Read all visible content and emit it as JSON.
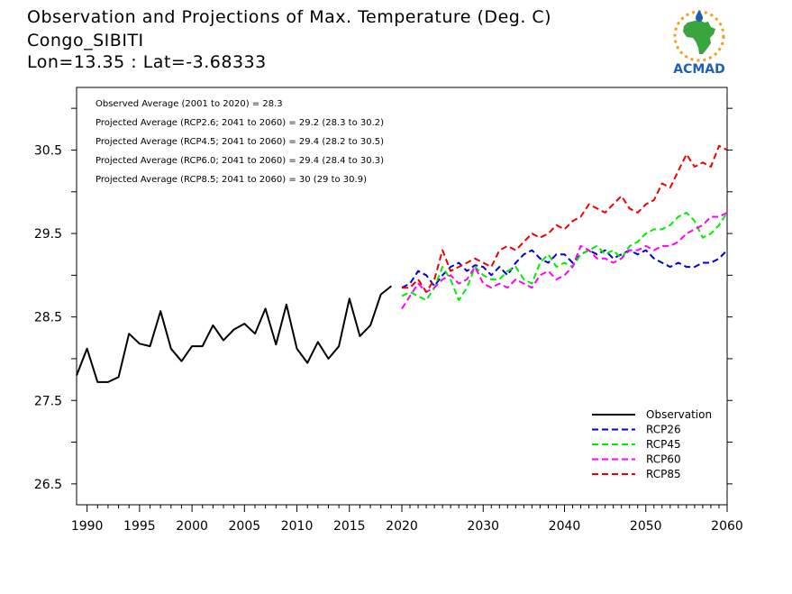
{
  "title": {
    "line1": "Observation and Projections of Max. Temperature (Deg. C)",
    "line2": "Congo_SIBITI",
    "line3": "Lon=13.35 : Lat=-3.68333"
  },
  "logo_text": "ACMAD",
  "colors": {
    "observation": "#000000",
    "rcp26": "#0000dd",
    "rcp45": "#00ee00",
    "rcp60": "#ff00ff",
    "rcp85": "#ee0000",
    "logo_blue": "#1f5fb4",
    "logo_green": "#3aa540",
    "logo_orange": "#f2a11f"
  },
  "chart_data": {
    "type": "line",
    "xlim": [
      1989,
      2060
    ],
    "ylim": [
      26.25,
      31.25
    ],
    "x_ticks": [
      1990,
      1995,
      2000,
      2005,
      2010,
      2015,
      2020,
      2030,
      2040,
      2050,
      2060
    ],
    "y_ticks": [
      26.5,
      27.5,
      28.5,
      29.5,
      30.5
    ],
    "annotations": [
      "Observed Average (2001 to 2020) = 28.3",
      "Projected Average (RCP2.6; 2041 to 2060) = 29.2 (28.3 to 30.2)",
      "Projected Average (RCP4.5; 2041 to 2060) = 29.4 (28.2 to 30.5)",
      "Projected Average (RCP6.0; 2041 to 2060) = 29.4 (28.4 to 30.3)",
      "Projected Average (RCP8.5; 2041 to 2060) = 30 (29 to 30.9)"
    ],
    "legend_position": "bottom-right",
    "series": [
      {
        "name": "Observation",
        "color_key": "observation",
        "dashed": false,
        "x": [
          1989,
          1990,
          1991,
          1992,
          1993,
          1994,
          1995,
          1996,
          1997,
          1998,
          1999,
          2000,
          2001,
          2002,
          2003,
          2004,
          2005,
          2006,
          2007,
          2008,
          2009,
          2010,
          2011,
          2012,
          2013,
          2014,
          2015,
          2016,
          2017,
          2018,
          2019
        ],
        "values": [
          27.8,
          28.12,
          27.72,
          27.72,
          27.78,
          28.3,
          28.18,
          28.15,
          28.57,
          28.12,
          27.97,
          28.15,
          28.15,
          28.4,
          28.22,
          28.35,
          28.42,
          28.3,
          28.6,
          28.17,
          28.65,
          28.12,
          27.95,
          28.2,
          28.0,
          28.15,
          28.72,
          28.27,
          28.4,
          28.77,
          28.87
        ]
      },
      {
        "name": "RCP26",
        "color_key": "rcp26",
        "dashed": true,
        "x": [
          2020,
          2021,
          2022,
          2023,
          2024,
          2025,
          2026,
          2027,
          2028,
          2029,
          2030,
          2031,
          2032,
          2033,
          2034,
          2035,
          2036,
          2037,
          2038,
          2039,
          2040,
          2041,
          2042,
          2043,
          2044,
          2045,
          2046,
          2047,
          2048,
          2049,
          2050,
          2051,
          2052,
          2053,
          2054,
          2055,
          2056,
          2057,
          2058,
          2059,
          2060
        ],
        "values": [
          28.85,
          28.9,
          29.05,
          29.0,
          28.87,
          29.0,
          29.1,
          29.15,
          29.05,
          29.12,
          29.1,
          29.0,
          29.1,
          29.0,
          29.15,
          29.25,
          29.3,
          29.2,
          29.15,
          29.25,
          29.25,
          29.15,
          29.25,
          29.3,
          29.25,
          29.3,
          29.2,
          29.25,
          29.3,
          29.25,
          29.3,
          29.2,
          29.15,
          29.1,
          29.15,
          29.1,
          29.1,
          29.15,
          29.15,
          29.2,
          29.3
        ]
      },
      {
        "name": "RCP45",
        "color_key": "rcp45",
        "dashed": true,
        "x": [
          2020,
          2021,
          2022,
          2023,
          2024,
          2025,
          2026,
          2027,
          2028,
          2029,
          2030,
          2031,
          2032,
          2033,
          2034,
          2035,
          2036,
          2037,
          2038,
          2039,
          2040,
          2041,
          2042,
          2043,
          2044,
          2045,
          2046,
          2047,
          2048,
          2049,
          2050,
          2051,
          2052,
          2053,
          2054,
          2055,
          2056,
          2057,
          2058,
          2059,
          2060
        ],
        "values": [
          28.75,
          28.8,
          28.75,
          28.7,
          28.85,
          29.1,
          28.95,
          28.7,
          28.85,
          29.1,
          29.0,
          28.95,
          28.95,
          29.05,
          29.1,
          28.95,
          28.9,
          29.15,
          29.25,
          29.1,
          29.15,
          29.1,
          29.25,
          29.3,
          29.35,
          29.25,
          29.3,
          29.2,
          29.35,
          29.4,
          29.5,
          29.55,
          29.55,
          29.6,
          29.7,
          29.75,
          29.65,
          29.45,
          29.5,
          29.6,
          29.75
        ]
      },
      {
        "name": "RCP60",
        "color_key": "rcp60",
        "dashed": true,
        "x": [
          2020,
          2021,
          2022,
          2023,
          2024,
          2025,
          2026,
          2027,
          2028,
          2029,
          2030,
          2031,
          2032,
          2033,
          2034,
          2035,
          2036,
          2037,
          2038,
          2039,
          2040,
          2041,
          2042,
          2043,
          2044,
          2045,
          2046,
          2047,
          2048,
          2049,
          2050,
          2051,
          2052,
          2053,
          2054,
          2055,
          2056,
          2057,
          2058,
          2059,
          2060
        ],
        "values": [
          28.6,
          28.75,
          28.9,
          28.8,
          28.85,
          28.95,
          29.0,
          28.9,
          28.95,
          29.1,
          28.9,
          28.85,
          28.9,
          28.85,
          28.95,
          28.9,
          28.85,
          29.0,
          29.05,
          28.95,
          29.0,
          29.1,
          29.35,
          29.3,
          29.2,
          29.2,
          29.15,
          29.2,
          29.3,
          29.3,
          29.35,
          29.3,
          29.35,
          29.35,
          29.4,
          29.5,
          29.55,
          29.6,
          29.7,
          29.7,
          29.75
        ]
      },
      {
        "name": "RCP85",
        "color_key": "rcp85",
        "dashed": true,
        "x": [
          2020,
          2021,
          2022,
          2023,
          2024,
          2025,
          2026,
          2027,
          2028,
          2029,
          2030,
          2031,
          2032,
          2033,
          2034,
          2035,
          2036,
          2037,
          2038,
          2039,
          2040,
          2041,
          2042,
          2043,
          2044,
          2045,
          2046,
          2047,
          2048,
          2049,
          2050,
          2051,
          2052,
          2053,
          2054,
          2055,
          2056,
          2057,
          2058,
          2059,
          2060
        ],
        "values": [
          28.85,
          28.85,
          28.95,
          28.8,
          28.95,
          29.3,
          29.05,
          29.1,
          29.15,
          29.2,
          29.15,
          29.1,
          29.3,
          29.35,
          29.3,
          29.4,
          29.5,
          29.45,
          29.5,
          29.6,
          29.55,
          29.65,
          29.7,
          29.85,
          29.8,
          29.75,
          29.85,
          29.95,
          29.8,
          29.75,
          29.85,
          29.9,
          30.1,
          30.05,
          30.25,
          30.45,
          30.3,
          30.35,
          30.3,
          30.55,
          30.5
        ]
      }
    ]
  }
}
